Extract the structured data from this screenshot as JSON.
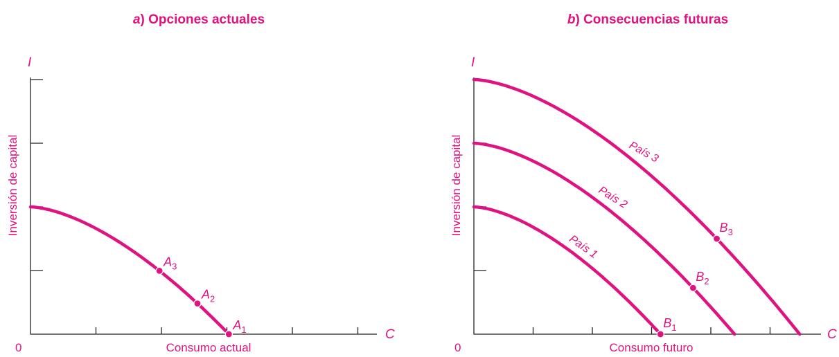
{
  "colors": {
    "accent": "#e0127f",
    "axis": "#222222"
  },
  "chart_data": [
    {
      "type": "line",
      "panel": "a",
      "title_letter": "a",
      "title_rest": ") Opciones actuales",
      "origin_label": "0",
      "x_axis_letter": "C",
      "y_axis_letter": "I",
      "xlabel": "Consumo actual",
      "ylabel": "Inversión de capital",
      "xlim": [
        0,
        5.3
      ],
      "ylim": [
        0,
        4
      ],
      "x_ticks": [
        1,
        2,
        3,
        4,
        5
      ],
      "y_ticks": [
        1,
        2,
        3,
        4
      ],
      "grid": false,
      "series": [
        {
          "values": [
            [
              0,
              2.0
            ],
            [
              1,
              1.72
            ],
            [
              2,
              1.28
            ],
            [
              2.55,
              0.93
            ],
            [
              3,
              0.32
            ],
            [
              3.03,
              0
            ]
          ]
        }
      ],
      "points": [
        {
          "letter": "A",
          "sub": "3",
          "x": 1.97,
          "y": 0.85
        },
        {
          "letter": "A",
          "sub": "2",
          "x": 2.55,
          "y": 0.45
        },
        {
          "letter": "A",
          "sub": "1",
          "x": 3.03,
          "y": 0.0
        }
      ]
    },
    {
      "type": "line",
      "panel": "b",
      "title_letter": "b",
      "title_rest": ") Consecuencias futuras",
      "origin_label": "0",
      "x_axis_letter": "C",
      "y_axis_letter": "I",
      "xlabel": "Consumo futuro",
      "ylabel": "Inversión de capital",
      "xlim": [
        0,
        5.8
      ],
      "ylim": [
        0,
        4
      ],
      "x_ticks": [
        1,
        2,
        3,
        4,
        5
      ],
      "y_ticks": [
        1,
        2,
        3,
        4
      ],
      "grid": false,
      "series": [
        {
          "name": "País 1",
          "curve_exp": 1.6,
          "y0": 2.0,
          "x0": 3.15
        },
        {
          "name": "País 2",
          "curve_exp": 1.6,
          "y0": 3.0,
          "x0": 4.4
        },
        {
          "name": "País 3",
          "curve_exp": 1.6,
          "y0": 4.0,
          "x0": 5.5
        }
      ],
      "points": [
        {
          "letter": "B",
          "sub": "1",
          "x": 3.15,
          "y": 0.0
        },
        {
          "letter": "B",
          "sub": "2",
          "x": 3.7,
          "y": 0.68
        },
        {
          "letter": "B",
          "sub": "3",
          "x": 4.1,
          "y": 1.45
        }
      ]
    }
  ]
}
